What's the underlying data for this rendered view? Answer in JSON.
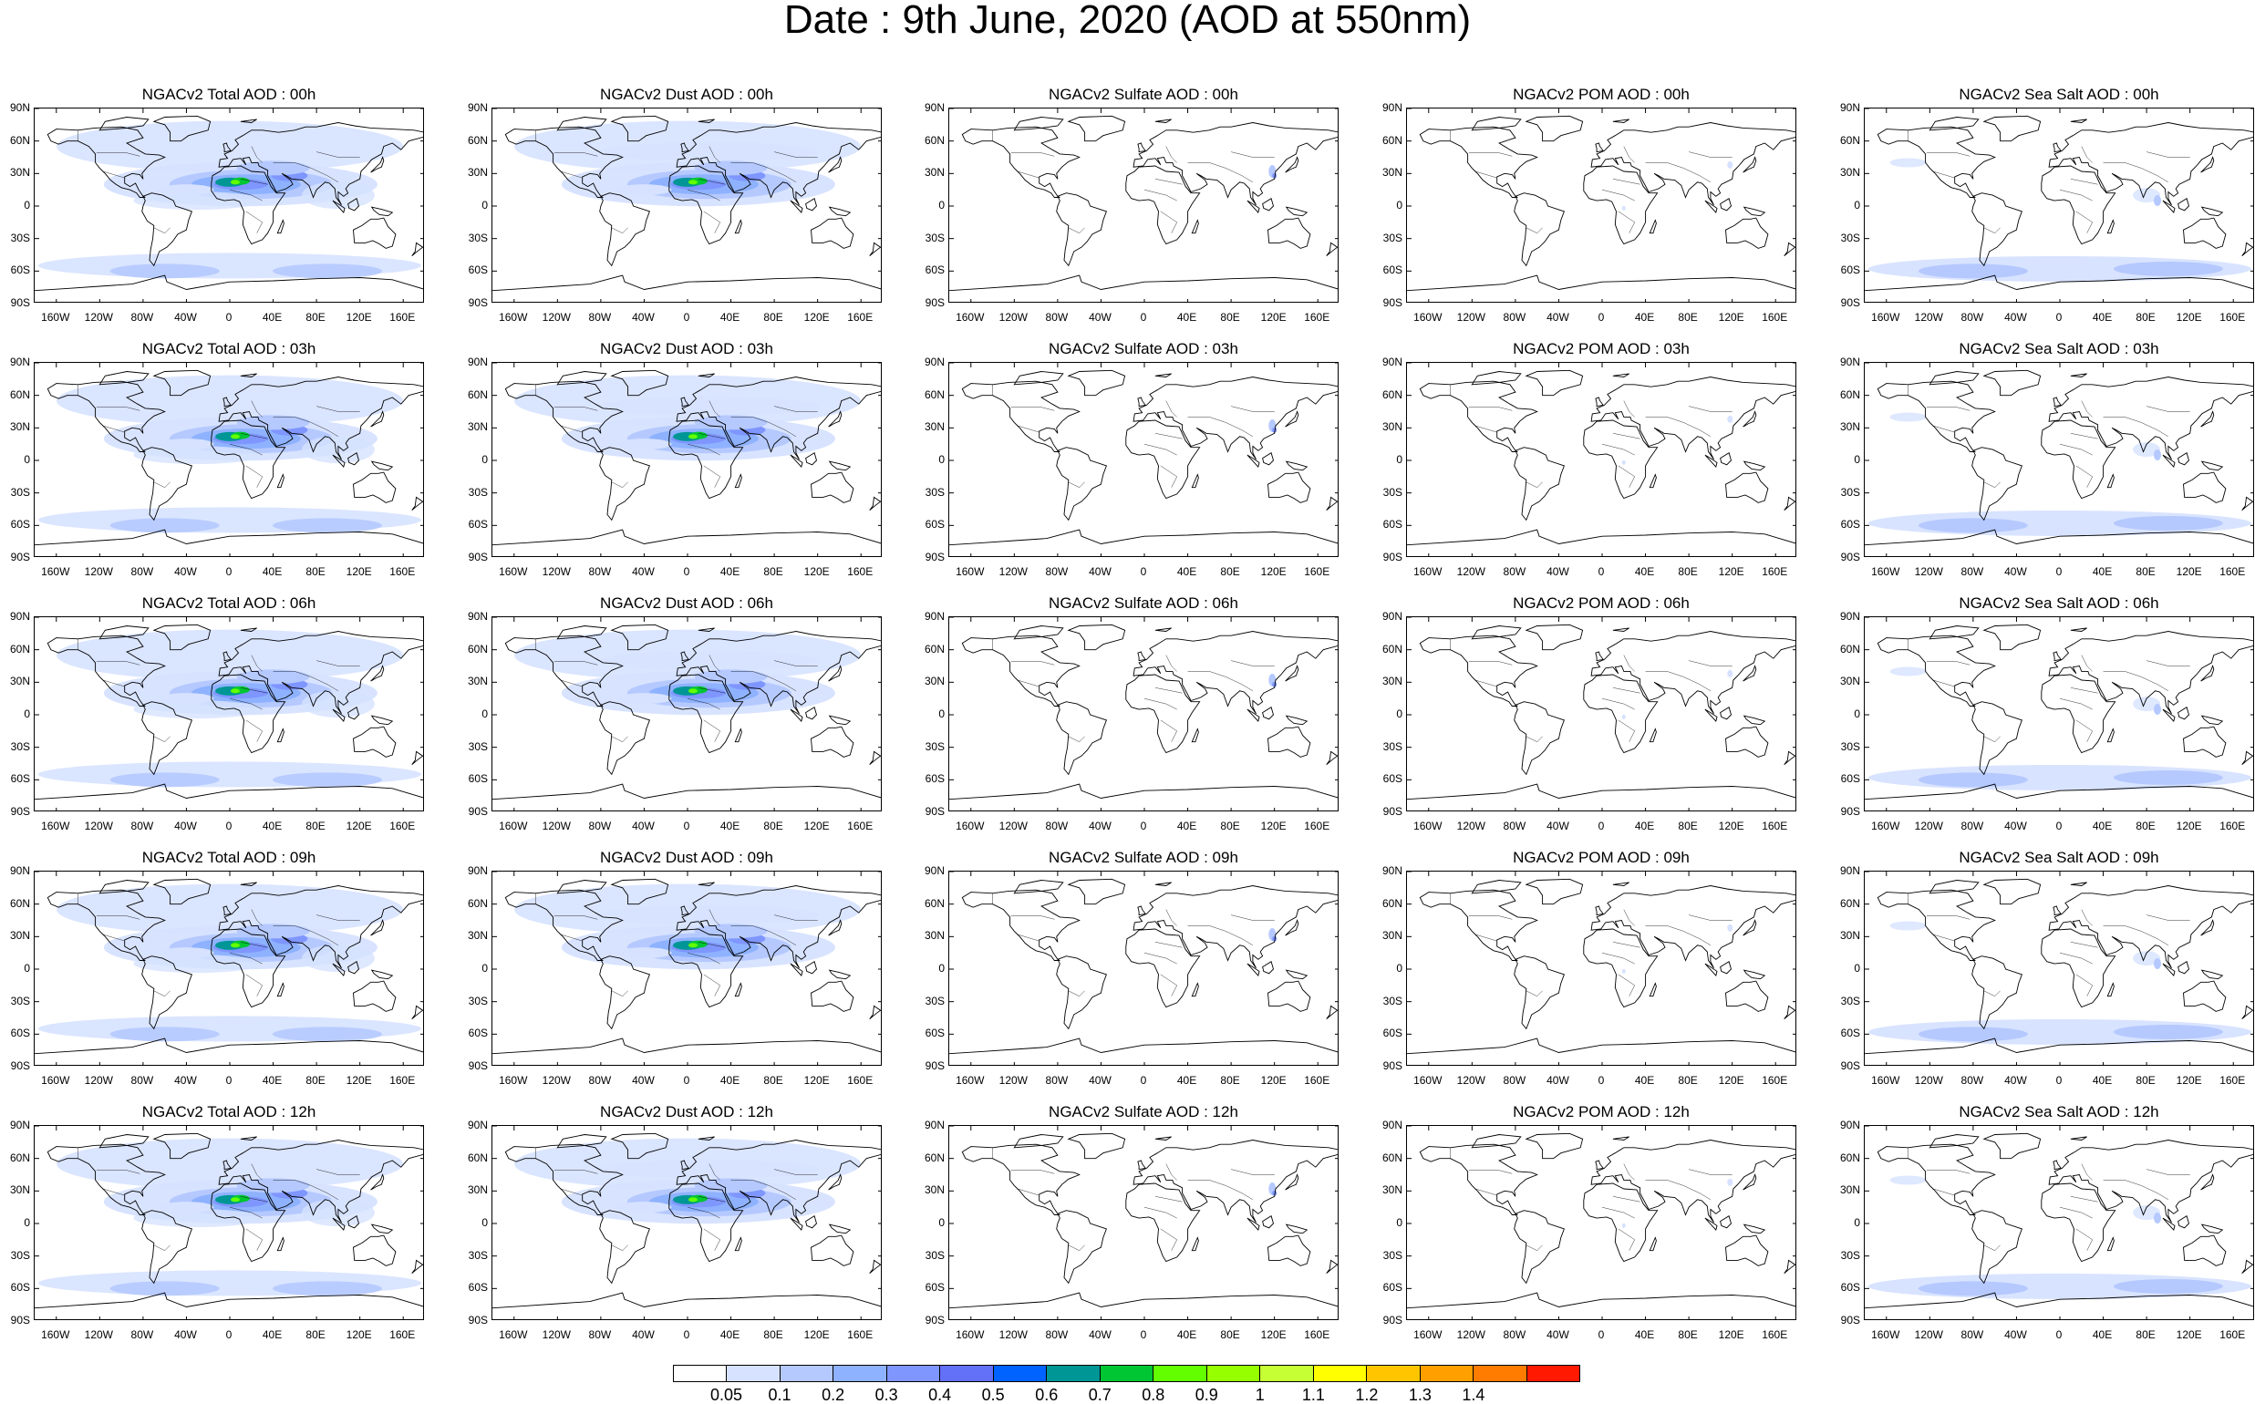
{
  "title": "Date : 9th June, 2020 (AOD at 550nm)",
  "rows": [
    [
      "NGACv2 Total AOD : 00h",
      "NGACv2 Dust AOD : 00h",
      "NGACv2 Sulfate AOD : 00h",
      "NGACv2 POM AOD : 00h",
      "NGACv2 Sea Salt AOD : 00h"
    ],
    [
      "NGACv2 Total AOD : 03h",
      "NGACv2 Dust AOD : 03h",
      "NGACv2 Sulfate AOD : 03h",
      "NGACv2 POM AOD : 03h",
      "NGACv2 Sea Salt AOD : 03h"
    ],
    [
      "NGACv2 Total AOD : 06h",
      "NGACv2 Dust AOD : 06h",
      "NGACv2 Sulfate AOD : 06h",
      "NGACv2 POM AOD : 06h",
      "NGACv2 Sea Salt AOD : 06h"
    ],
    [
      "NGACv2 Total AOD : 09h",
      "NGACv2 Dust AOD : 09h",
      "NGACv2 Sulfate AOD : 09h",
      "NGACv2 POM AOD : 09h",
      "NGACv2 Sea Salt  AOD : 09h"
    ],
    [
      "NGACv2 Total AOD :  12h",
      "NGACv2 Dust AOD : 12h",
      "NGACv2 Sulfate AOD : 12h",
      "NGACv2 POM  AOD : 12h",
      "NGACv2 Sea Salt AOD : 12h"
    ]
  ],
  "lat_ticks": [
    "90N",
    "60N",
    "30N",
    "0",
    "30S",
    "60S",
    "90S"
  ],
  "lon_ticks": [
    "160W",
    "120W",
    "80W",
    "40W",
    "0",
    "40E",
    "80E",
    "120E",
    "160E"
  ],
  "lon_tick_values": [
    -160,
    -120,
    -80,
    -40,
    0,
    40,
    80,
    120,
    160
  ],
  "colorbar": {
    "labels": [
      "0.05",
      "0.1",
      "0.2",
      "0.3",
      "0.4",
      "0.5",
      "0.6",
      "0.7",
      "0.8",
      "0.9",
      "1",
      "1.1",
      "1.2",
      "1.3",
      "1.4"
    ],
    "colors": [
      "#ffffff",
      "#d6e2ff",
      "#b5c9ff",
      "#8eb2ff",
      "#7f96ff",
      "#6370f8",
      "#0063ff",
      "#009696",
      "#00c633",
      "#63ff00",
      "#96ff00",
      "#c6ff33",
      "#ffff00",
      "#ffc600",
      "#ffa000",
      "#ff7c00",
      "#ff1900"
    ]
  }
}
